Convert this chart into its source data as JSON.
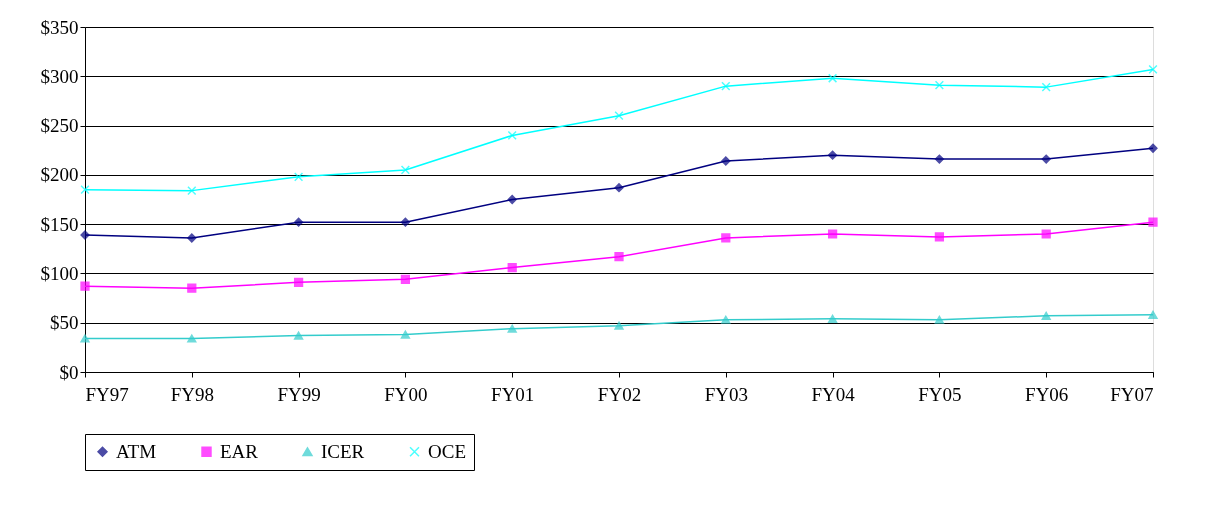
{
  "chart_data": {
    "type": "line",
    "categories": [
      "FY97",
      "FY98",
      "FY99",
      "FY00",
      "FY01",
      "FY02",
      "FY03",
      "FY04",
      "FY05",
      "FY06",
      "FY07"
    ],
    "series": [
      {
        "name": "ATM",
        "color": "#000080",
        "marker": "diamond",
        "values": [
          139,
          136,
          152,
          152,
          175,
          187,
          214,
          220,
          216,
          216,
          227
        ]
      },
      {
        "name": "EAR",
        "color": "#ff00ff",
        "marker": "square",
        "values": [
          87,
          85,
          91,
          94,
          106,
          117,
          136,
          140,
          137,
          140,
          152
        ]
      },
      {
        "name": "ICER",
        "color": "#33cccc",
        "marker": "triangle",
        "values": [
          34,
          34,
          37,
          38,
          44,
          47,
          53,
          54,
          53,
          57,
          58
        ]
      },
      {
        "name": "OCE",
        "color": "#00ffff",
        "marker": "cross",
        "values": [
          185,
          184,
          198,
          205,
          240,
          260,
          290,
          298,
          291,
          289,
          307
        ]
      }
    ],
    "ylim": [
      0,
      350
    ],
    "yticks": [
      {
        "value": 0,
        "label": "$0"
      },
      {
        "value": 50,
        "label": "$50"
      },
      {
        "value": 100,
        "label": "$100"
      },
      {
        "value": 150,
        "label": "$150"
      },
      {
        "value": 200,
        "label": "$200"
      },
      {
        "value": 250,
        "label": "$250"
      },
      {
        "value": 300,
        "label": "$300"
      },
      {
        "value": 350,
        "label": "$350"
      }
    ],
    "grid": "y",
    "legend": "bottom",
    "line_style": "solid"
  }
}
